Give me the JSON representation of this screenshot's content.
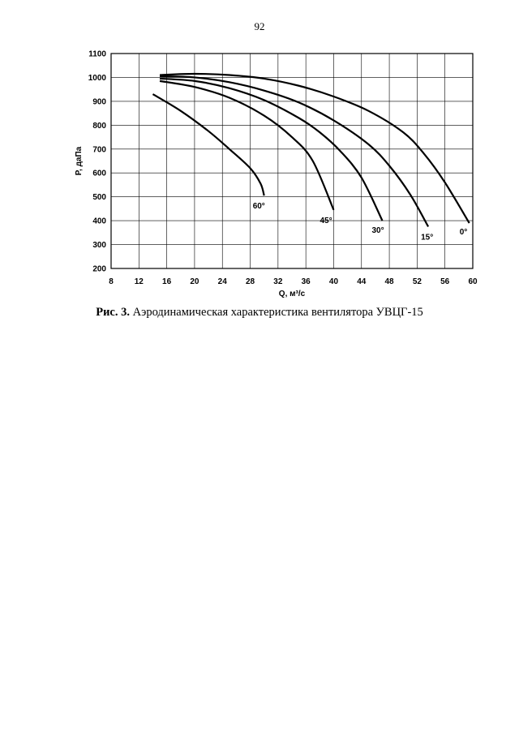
{
  "page": {
    "number": "92",
    "caption_prefix": "Рис. 3.",
    "caption_text": " Аэродинамическая характеристика вентилятора УВЦГ-15"
  },
  "chart_data": {
    "type": "line",
    "xlabel": "Q, м³/с",
    "ylabel": "Р, даПа",
    "xlim": [
      8,
      60
    ],
    "ylim": [
      200,
      1100
    ],
    "xticks": [
      8,
      12,
      16,
      20,
      24,
      28,
      32,
      36,
      40,
      44,
      48,
      52,
      56,
      60
    ],
    "yticks": [
      200,
      300,
      400,
      500,
      600,
      700,
      800,
      900,
      1000,
      1100
    ],
    "grid": true,
    "series": [
      {
        "name": "0°",
        "x": [
          15,
          20,
          25,
          30,
          35,
          40,
          45,
          50,
          53,
          56,
          59.5
        ],
        "y": [
          1010,
          1015,
          1010,
          995,
          965,
          920,
          860,
          770,
          680,
          560,
          390
        ]
      },
      {
        "name": "15°",
        "x": [
          15,
          20,
          25,
          30,
          35,
          40,
          45,
          48,
          51,
          53.6
        ],
        "y": [
          1005,
          1000,
          980,
          945,
          895,
          820,
          720,
          630,
          510,
          375
        ]
      },
      {
        "name": "30°",
        "x": [
          15,
          20,
          25,
          30,
          35,
          38,
          41,
          44,
          47
        ],
        "y": [
          995,
          985,
          955,
          905,
          830,
          770,
          690,
          580,
          400
        ]
      },
      {
        "name": "45°",
        "x": [
          15,
          20,
          25,
          30,
          34,
          37,
          40
        ],
        "y": [
          985,
          960,
          915,
          840,
          750,
          650,
          445
        ]
      },
      {
        "name": "60°",
        "x": [
          14,
          18,
          22,
          25,
          28,
          29.5,
          30
        ],
        "y": [
          930,
          860,
          775,
          700,
          620,
          555,
          505
        ]
      }
    ]
  }
}
